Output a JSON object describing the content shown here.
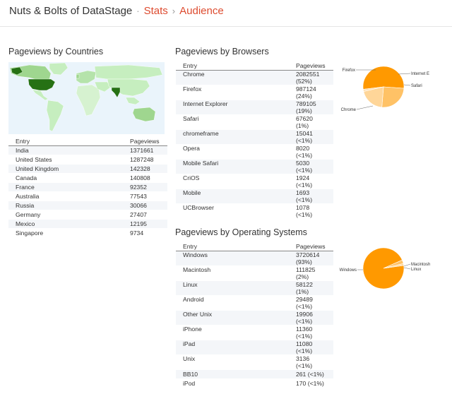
{
  "header": {
    "site_title": "Nuts & Bolts of DataStage",
    "separator": "·",
    "crumb_stats": "Stats",
    "crumb_arrow": "›",
    "crumb_audience": "Audience"
  },
  "colors": {
    "accent": "#dd4b2f",
    "map_high": "#267114",
    "map_low": "#c6eebf",
    "pie_main": "#ff9900",
    "pie_light": "#ffcc80"
  },
  "countries": {
    "title": "Pageviews by Countries",
    "col_entry": "Entry",
    "col_pageviews": "Pageviews",
    "rows": [
      {
        "entry": "India",
        "pageviews": "1371661"
      },
      {
        "entry": "United States",
        "pageviews": "1287248"
      },
      {
        "entry": "United Kingdom",
        "pageviews": "142328"
      },
      {
        "entry": "Canada",
        "pageviews": "140808"
      },
      {
        "entry": "France",
        "pageviews": "92352"
      },
      {
        "entry": "Australia",
        "pageviews": "77543"
      },
      {
        "entry": "Russia",
        "pageviews": "30066"
      },
      {
        "entry": "Germany",
        "pageviews": "27407"
      },
      {
        "entry": "Mexico",
        "pageviews": "12195"
      },
      {
        "entry": "Singapore",
        "pageviews": "9734"
      }
    ]
  },
  "browsers": {
    "title": "Pageviews by Browsers",
    "col_entry": "Entry",
    "col_pageviews": "Pageviews",
    "rows": [
      {
        "entry": "Chrome",
        "value": "2082551",
        "pct": "(52%)"
      },
      {
        "entry": "Firefox",
        "value": "987124",
        "pct": "(24%)"
      },
      {
        "entry": "Internet Explorer",
        "value": "789105",
        "pct": "(19%)"
      },
      {
        "entry": "Safari",
        "value": "67620",
        "pct": "(1%)"
      },
      {
        "entry": "chromeframe",
        "value": "15041",
        "pct": "(<1%)"
      },
      {
        "entry": "Opera",
        "value": "8020",
        "pct": "(<1%)"
      },
      {
        "entry": "Mobile Safari",
        "value": "5030",
        "pct": "(<1%)"
      },
      {
        "entry": "CriOS",
        "value": "1924",
        "pct": "(<1%)"
      },
      {
        "entry": "Mobile",
        "value": "1693",
        "pct": "(<1%)"
      },
      {
        "entry": "UCBrowser",
        "value": "1078",
        "pct": "(<1%)"
      }
    ],
    "pie": {
      "labels": [
        "Firefox",
        "Internet E",
        "Safari",
        "Chrome"
      ],
      "slices": [
        {
          "name": "Chrome",
          "value": 2082551,
          "color": "#ff9900"
        },
        {
          "name": "Firefox",
          "value": 987124,
          "color": "#ffc266"
        },
        {
          "name": "Internet Explorer",
          "value": 789105,
          "color": "#ffd699"
        },
        {
          "name": "Safari",
          "value": 67620,
          "color": "#ffe0b3"
        }
      ]
    }
  },
  "os": {
    "title": "Pageviews by Operating Systems",
    "col_entry": "Entry",
    "col_pageviews": "Pageviews",
    "rows": [
      {
        "entry": "Windows",
        "value": "3720614",
        "pct": "(93%)"
      },
      {
        "entry": "Macintosh",
        "value": "111825",
        "pct": "(2%)"
      },
      {
        "entry": "Linux",
        "value": "58122",
        "pct": "(1%)"
      },
      {
        "entry": "Android",
        "value": "29489",
        "pct": "(<1%)"
      },
      {
        "entry": "Other Unix",
        "value": "19906",
        "pct": "(<1%)"
      },
      {
        "entry": "iPhone",
        "value": "11360",
        "pct": "(<1%)"
      },
      {
        "entry": "iPad",
        "value": "11080",
        "pct": "(<1%)"
      },
      {
        "entry": "Unix",
        "value": "3136",
        "pct": "(<1%)"
      },
      {
        "entry": "BB10",
        "value": "261 (<1%)",
        "pct": ""
      },
      {
        "entry": "iPod",
        "value": "170 (<1%)",
        "pct": ""
      }
    ],
    "pie": {
      "labels": [
        "Windows",
        "Macintosh",
        "Linux"
      ],
      "slices": [
        {
          "name": "Windows",
          "value": 3720614,
          "color": "#ff9900"
        },
        {
          "name": "Macintosh",
          "value": 111825,
          "color": "#ffc266"
        },
        {
          "name": "Linux",
          "value": 58122,
          "color": "#ffd699"
        }
      ]
    }
  }
}
